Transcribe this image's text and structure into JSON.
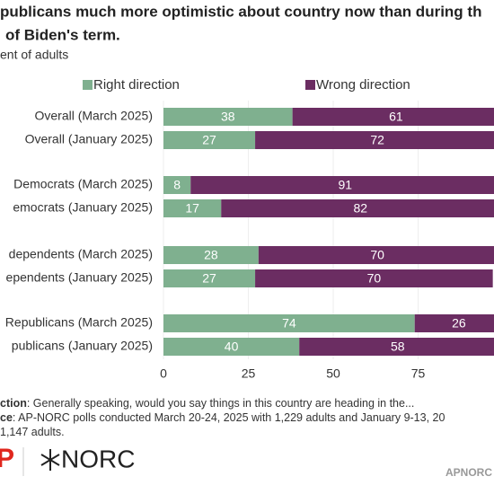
{
  "chart_data": {
    "type": "stacked-bar-horizontal",
    "title_lines": [
      "publicans much more optimistic about country now than during th",
      "of Biden's term."
    ],
    "subtitle": "ent of adults",
    "categories": [
      "Overall (March 2025)",
      "Overall (January 2025)",
      "Democrats (March 2025)",
      "emocrats (January 2025)",
      "dependents (March 2025)",
      "ependents (January 2025)",
      "Republicans (March 2025)",
      "publicans (January 2025)"
    ],
    "series": [
      {
        "name": "Right direction",
        "color": "#7fb08f",
        "values": [
          38,
          27,
          8,
          17,
          28,
          27,
          74,
          40
        ]
      },
      {
        "name": "Wrong direction",
        "color": "#6b2d62",
        "values": [
          61,
          72,
          91,
          82,
          70,
          70,
          26,
          58
        ]
      }
    ],
    "xlim": [
      0,
      100
    ],
    "xticks": [
      0,
      25,
      50,
      75
    ],
    "notes": [
      {
        "bold": "ction",
        "text": ": Generally speaking, would you say things in this country are heading in the..."
      },
      {
        "bold": "ce",
        "text": ": AP-NORC polls conducted March 20-24, 2025 with 1,229 adults and January 9-13, 20"
      },
      {
        "bold": "",
        "text": "1,147 adults."
      }
    ],
    "logo_left": "P",
    "logo_right": "NORC",
    "footer": "APNORC"
  }
}
